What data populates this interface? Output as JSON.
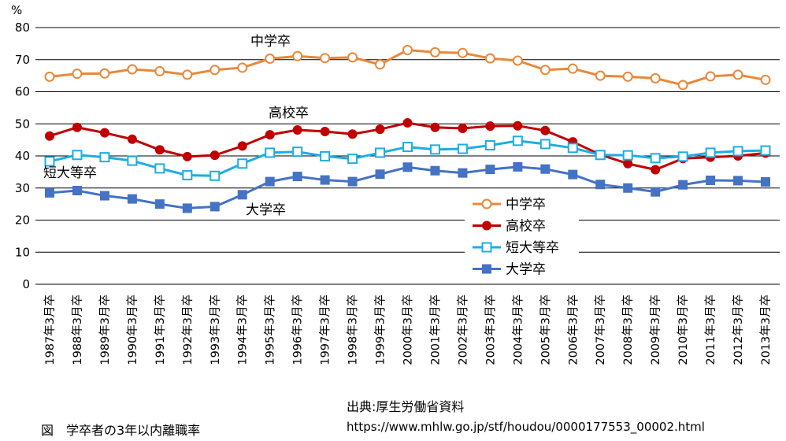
{
  "chart_data": {
    "type": "line",
    "categories": [
      "1987年3月卒",
      "1988年3月卒",
      "1989年3月卒",
      "1990年3月卒",
      "1991年3月卒",
      "1992年3月卒",
      "1993年3月卒",
      "1994年3月卒",
      "1995年3月卒",
      "1996年3月卒",
      "1997年3月卒",
      "1998年3月卒",
      "1999年3月卒",
      "2000年3月卒",
      "2001年3月卒",
      "2002年3月卒",
      "2003年3月卒",
      "2004年3月卒",
      "2005年3月卒",
      "2006年3月卒",
      "2007年3月卒",
      "2008年3月卒",
      "2009年3月卒",
      "2010年3月卒",
      "2011年3月卒",
      "2012年3月卒",
      "2013年3月卒"
    ],
    "ylabel": "%",
    "ylim": [
      0,
      80
    ],
    "yticks": [
      "0",
      "10",
      "20",
      "30",
      "40",
      "50",
      "60",
      "70",
      "80"
    ],
    "grid": true,
    "legend_position": "lower-right",
    "series": [
      {
        "name": "中学卒",
        "color": "#E8883A",
        "marker": "open-circle",
        "values": [
          64.7,
          65.6,
          65.7,
          67.0,
          66.4,
          65.3,
          66.8,
          67.5,
          70.3,
          71.1,
          70.5,
          70.7,
          68.5,
          73.0,
          72.3,
          72.1,
          70.4,
          69.7,
          66.8,
          67.2,
          65.0,
          64.7,
          64.2,
          62.1,
          64.8,
          65.3,
          63.7
        ]
      },
      {
        "name": "高校卒",
        "color": "#C00000",
        "marker": "filled-circle",
        "values": [
          46.2,
          48.9,
          47.2,
          45.2,
          41.9,
          39.8,
          40.2,
          43.1,
          46.6,
          48.1,
          47.6,
          46.8,
          48.3,
          50.3,
          48.9,
          48.6,
          49.3,
          49.4,
          47.9,
          44.4,
          40.4,
          37.6,
          35.7,
          39.2,
          39.6,
          40.0,
          40.9
        ]
      },
      {
        "name": "短大等卒",
        "color": "#1CADE4",
        "marker": "open-square",
        "values": [
          38.3,
          40.3,
          39.6,
          38.5,
          36.1,
          34.0,
          33.8,
          37.6,
          41.0,
          41.3,
          39.9,
          39.1,
          41.0,
          42.8,
          42.0,
          42.2,
          43.3,
          44.7,
          43.7,
          42.5,
          40.3,
          40.2,
          39.3,
          39.8,
          41.0,
          41.5,
          41.7
        ]
      },
      {
        "name": "大学卒",
        "color": "#4472C4",
        "marker": "filled-square",
        "values": [
          28.5,
          29.2,
          27.6,
          26.6,
          25.0,
          23.7,
          24.2,
          27.9,
          32.0,
          33.6,
          32.5,
          32.0,
          34.3,
          36.5,
          35.4,
          34.7,
          35.8,
          36.6,
          35.9,
          34.2,
          31.1,
          30.0,
          28.8,
          31.0,
          32.4,
          32.3,
          31.9
        ]
      }
    ],
    "annotations": {
      "junior_high": "中学卒",
      "high_school": "高校卒",
      "junior_college": "短大等卒",
      "university": "大学卒"
    }
  },
  "source_line": "出典:厚生労働省資料",
  "source_url": "https://www.mhlw.go.jp/stf/houdou/0000177553_00002.html",
  "caption": "図　学卒者の3年以内離職率"
}
